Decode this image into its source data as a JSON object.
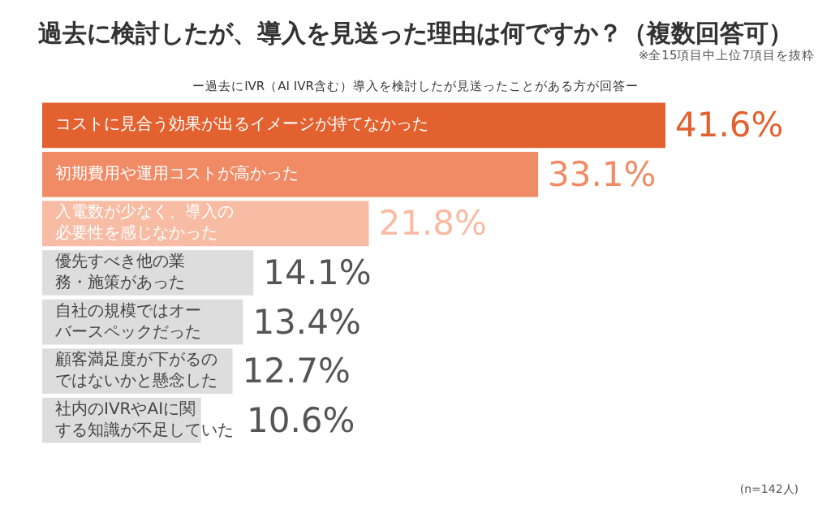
{
  "chart_data": {
    "type": "bar",
    "orientation": "horizontal",
    "title": "過去に検討したが、導入を見送った理由は何ですか？（複数回答可）",
    "subtitle": "ー過去にIVR（AI IVR含む）導入を検討したが見送ったことがある方が回答ー",
    "annotations": [
      "※全15項目中上位7項目を抜粋",
      "(n=142人)"
    ],
    "categories": [
      "コストに見合う効果が出るイメージが持てなかった",
      "初期費用や運用コストが高かった",
      "入電数が少なく、導入の必要性を感じなかった",
      "優先すべき他の業務・施策があった",
      "自社の規模ではオーバースペックだった",
      "顧客満足度が下がるのではないかと懸念した",
      "社内のIVRやAIに関する知識が不足していた"
    ],
    "values": [
      41.6,
      33.1,
      21.8,
      14.1,
      13.4,
      12.7,
      10.6
    ],
    "value_labels": [
      "41.6%",
      "33.1%",
      "21.8%",
      "14.1%",
      "13.4%",
      "12.7%",
      "10.6%"
    ],
    "colors": [
      "#e3612f",
      "#f08b66",
      "#f8bba3",
      "#dddddd",
      "#dddddd",
      "#dddddd",
      "#dddddd"
    ],
    "grid": false
  }
}
